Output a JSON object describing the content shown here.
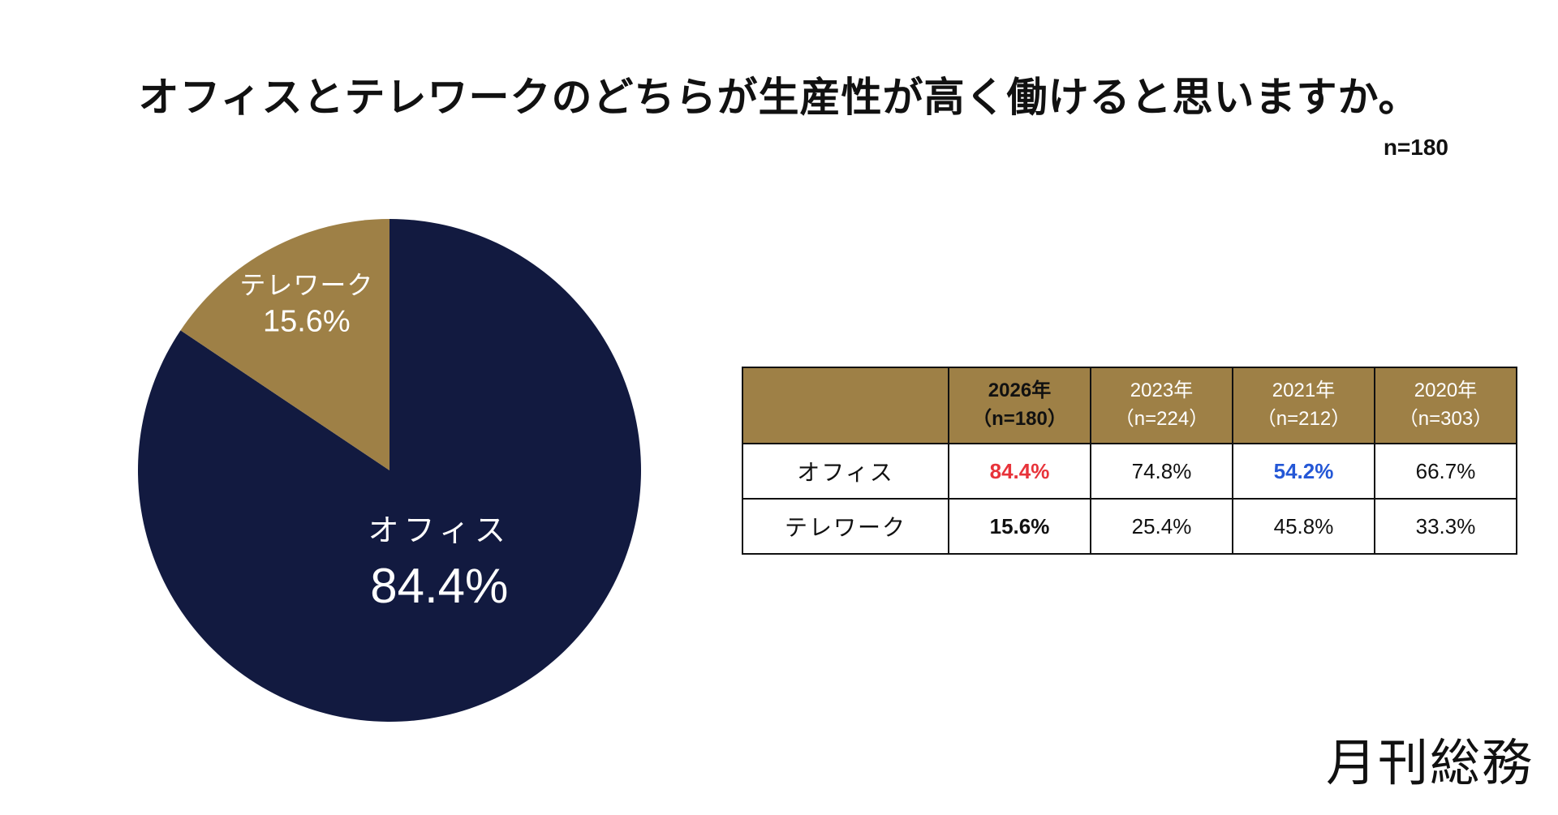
{
  "title": "オフィスとテレワークのどちらが生産性が高く働けると思いますか。",
  "sample_note": "n=180",
  "chart_data": {
    "type": "pie",
    "title": "オフィスとテレワークのどちらが生産性が高く働けると思いますか。",
    "slices": [
      {
        "label": "オフィス",
        "value": 84.4,
        "value_label": "84.4%",
        "color": "#121a40"
      },
      {
        "label": "テレワーク",
        "value": 15.6,
        "value_label": "15.6%",
        "color": "#9e8046"
      }
    ]
  },
  "table": {
    "corner": "",
    "columns": [
      {
        "year": "2026年",
        "n": "（n=180）",
        "highlight": true
      },
      {
        "year": "2023年",
        "n": "（n=224）",
        "highlight": false
      },
      {
        "year": "2021年",
        "n": "（n=212）",
        "highlight": false
      },
      {
        "year": "2020年",
        "n": "（n=303）",
        "highlight": false
      }
    ],
    "rows": [
      {
        "label": "オフィス",
        "values": [
          "84.4%",
          "74.8%",
          "54.2%",
          "66.7%"
        ]
      },
      {
        "label": "テレワーク",
        "values": [
          "15.6%",
          "25.4%",
          "45.8%",
          "33.3%"
        ]
      }
    ],
    "colors": {
      "red": "#e8333a",
      "blue": "#2457d6"
    }
  },
  "brand": "月刊総務"
}
